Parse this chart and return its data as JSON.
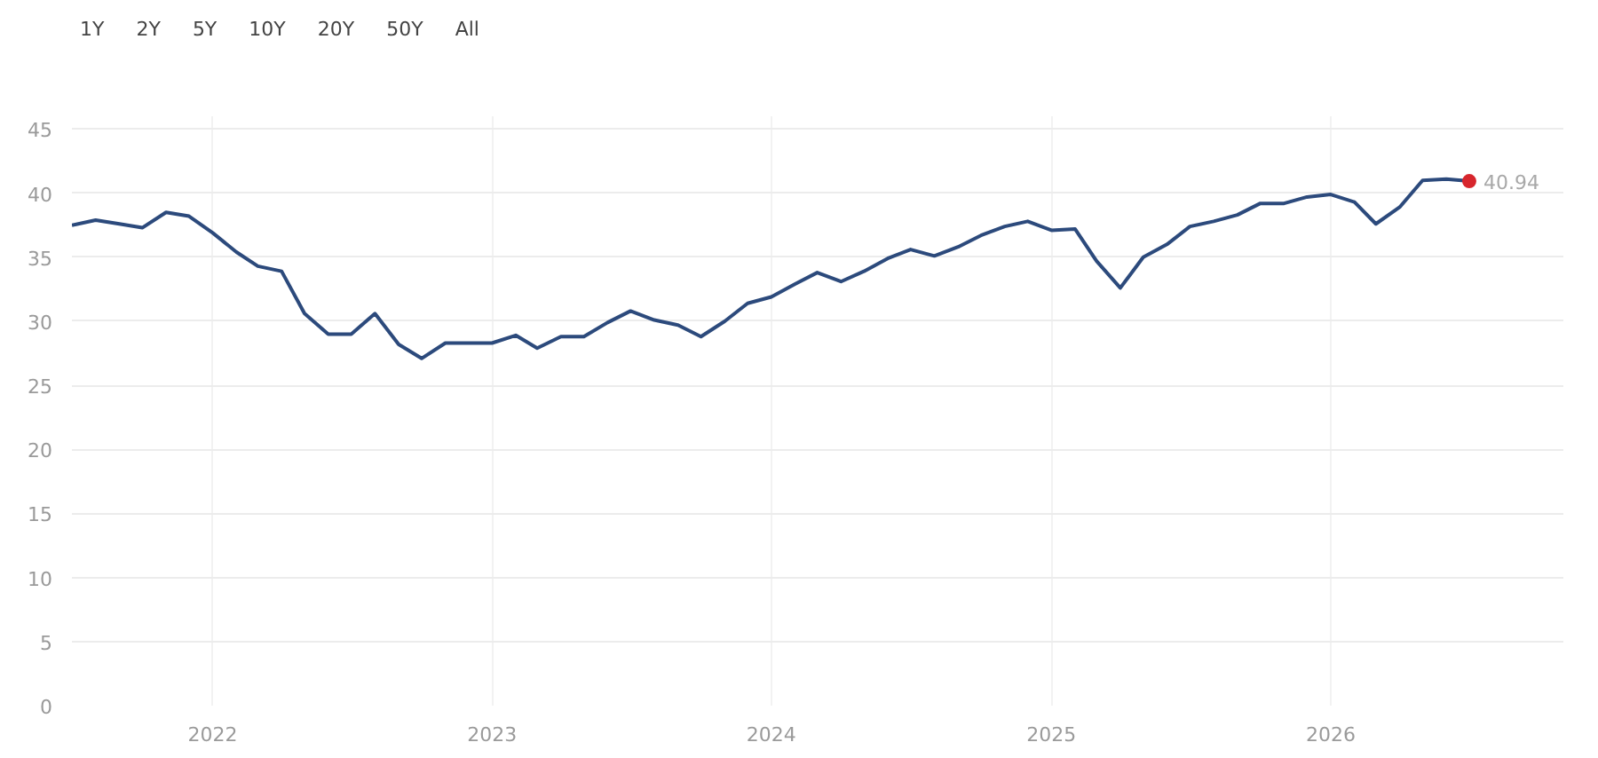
{
  "chart_data": {
    "type": "line",
    "annotations": [
      "1Y",
      "2Y",
      "5Y",
      "10Y",
      "20Y",
      "50Y",
      "All"
    ],
    "x": [
      "2021-07",
      "2021-08",
      "2021-09",
      "2021-10",
      "2021-11",
      "2021-12",
      "2022-01",
      "2022-02",
      "2022-03",
      "2022-04",
      "2022-05",
      "2022-06",
      "2022-07",
      "2022-08",
      "2022-09",
      "2022-10",
      "2022-11",
      "2022-12",
      "2023-01",
      "2023-02",
      "2023-03",
      "2023-04",
      "2023-05",
      "2023-06",
      "2023-07",
      "2023-08",
      "2023-09",
      "2023-10",
      "2023-11",
      "2023-12",
      "2024-01",
      "2024-02",
      "2024-03",
      "2024-04",
      "2024-05",
      "2024-06",
      "2024-07",
      "2024-08",
      "2024-09",
      "2024-10",
      "2024-11",
      "2024-12",
      "2025-01",
      "2025-02",
      "2025-03",
      "2025-04",
      "2025-05",
      "2025-06",
      "2025-07",
      "2025-08",
      "2025-09",
      "2025-10",
      "2025-11",
      "2025-12",
      "2026-01",
      "2026-02",
      "2026-03",
      "2026-04",
      "2026-05",
      "2026-06",
      "2026-07"
    ],
    "series": [
      {
        "color": "#2c4a7c",
        "values": [
          37.5,
          37.9,
          37.6,
          37.3,
          38.5,
          38.2,
          36.9,
          35.4,
          34.3,
          33.9,
          30.6,
          29.0,
          29.0,
          30.6,
          28.2,
          27.1,
          28.3,
          28.3,
          28.3,
          28.9,
          27.9,
          28.8,
          28.8,
          29.9,
          30.8,
          30.1,
          29.7,
          28.8,
          30.0,
          31.4,
          31.9,
          32.9,
          33.8,
          33.1,
          33.9,
          34.9,
          35.6,
          35.1,
          35.8,
          36.7,
          37.4,
          37.8,
          37.1,
          37.2,
          34.7,
          32.6,
          35.0,
          36.0,
          37.4,
          37.8,
          38.3,
          39.2,
          39.2,
          39.7,
          39.9,
          39.3,
          37.6,
          38.9,
          41.0,
          41.1,
          40.94
        ],
        "value_labels": [
          null,
          null,
          null,
          null,
          null,
          null,
          null,
          null,
          null,
          null,
          null,
          null,
          null,
          null,
          null,
          null,
          null,
          null,
          null,
          null,
          null,
          null,
          null,
          null,
          null,
          null,
          null,
          null,
          null,
          null,
          null,
          null,
          null,
          null,
          null,
          null,
          null,
          null,
          null,
          null,
          null,
          null,
          null,
          null,
          null,
          null,
          null,
          null,
          null,
          null,
          null,
          null,
          null,
          null,
          null,
          null,
          null,
          null,
          null,
          null,
          "40.94"
        ]
      }
    ],
    "xlim": [
      "2021-07",
      "2026-11"
    ],
    "xticks": [
      {
        "value": "2022-01",
        "label": "2022"
      },
      {
        "value": "2023-01",
        "label": "2023"
      },
      {
        "value": "2024-01",
        "label": "2024"
      },
      {
        "value": "2025-01",
        "label": "2025"
      },
      {
        "value": "2026-01",
        "label": "2026"
      }
    ],
    "ylim": [
      0,
      46
    ],
    "yticks": [
      0,
      5,
      10,
      15,
      20,
      25,
      30,
      35,
      40,
      45
    ],
    "grid": true,
    "marker": "none",
    "line_style": "solid"
  }
}
